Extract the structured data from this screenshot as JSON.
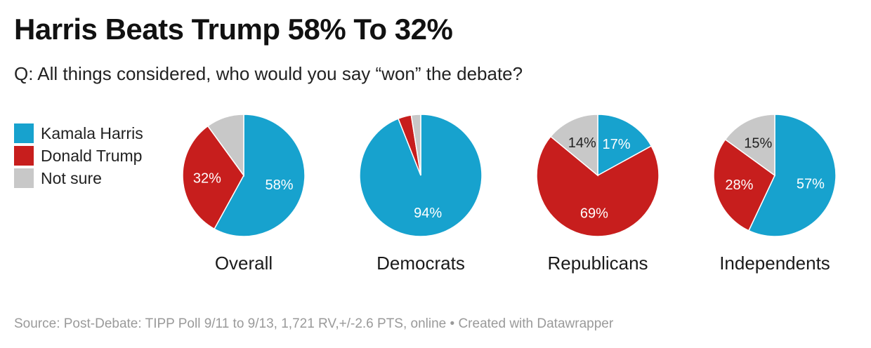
{
  "header": {
    "title": "Harris Beats Trump 58% To 32%",
    "subtitle": "Q: All things considered, who would you say “won” the debate?"
  },
  "legend": [
    {
      "label": "Kamala Harris",
      "color": "#17a2ce"
    },
    {
      "label": "Donald Trump",
      "color": "#c71e1d"
    },
    {
      "label": "Not sure",
      "color": "#c8c8c8"
    }
  ],
  "chart_data": {
    "type": "pie",
    "series_names": [
      "Kamala Harris",
      "Donald Trump",
      "Not sure"
    ],
    "colors": [
      "#17a2ce",
      "#c71e1d",
      "#c8c8c8"
    ],
    "charts": [
      {
        "label": "Overall",
        "values": [
          58,
          32,
          10
        ],
        "value_labels": [
          "58%",
          "32%",
          ""
        ]
      },
      {
        "label": "Democrats",
        "values": [
          94,
          3.5,
          2.5
        ],
        "value_labels": [
          "94%",
          "",
          ""
        ]
      },
      {
        "label": "Republicans",
        "values": [
          17,
          69,
          14
        ],
        "value_labels": [
          "17%",
          "69%",
          "14%"
        ]
      },
      {
        "label": "Independents",
        "values": [
          57,
          28,
          15
        ],
        "value_labels": [
          "57%",
          "28%",
          "15%"
        ]
      }
    ]
  },
  "footer": {
    "source": "Source: Post-Debate: TIPP Poll 9/11 to 9/13, 1,721 RV,+/-2.6 PTS, online • Created with Datawrapper"
  }
}
